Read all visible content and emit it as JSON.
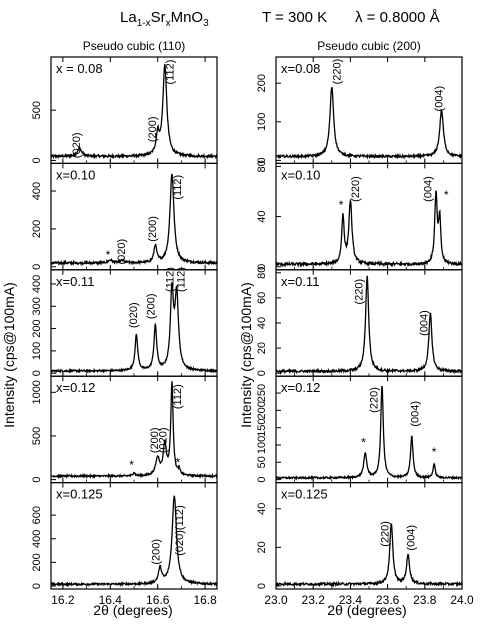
{
  "figure": {
    "title_main": "La",
    "title_sub1": "1-x",
    "title_mid": "Sr",
    "title_sub2": "x",
    "title_tail": "MnO",
    "title_sub3": "3",
    "temperature": "T = 300 K",
    "wavelength": "λ = 0.8000 Å",
    "ylabel": "Intensity (cps@100mA)",
    "xlabel": "2θ (degrees)"
  },
  "chart_data": [
    {
      "type": "line",
      "column_title": "Pseudo cubic (110)",
      "panels": [
        {
          "label": "x = 0.08",
          "ylim": [
            0,
            1000
          ],
          "yticks": [
            0,
            500
          ],
          "base": 40,
          "noise": 12,
          "peaks": [
            [
              16.27,
              80,
              0.011
            ],
            [
              16.6,
              200,
              0.008
            ],
            [
              16.63,
              900,
              0.01
            ]
          ],
          "annotations": [
            {
              "text": "(020)",
              "x": 16.26,
              "y": 150
            },
            {
              "text": "(200)",
              "x": 16.58,
              "y": 310
            },
            {
              "text": "(112)",
              "x": 16.655,
              "y": 880
            }
          ]
        },
        {
          "label": "x=0.10",
          "ylim": [
            0,
            530
          ],
          "yticks": [
            0,
            200,
            400
          ],
          "base": 20,
          "noise": 6,
          "peaks": [
            [
              16.4,
              15,
              0.01
            ],
            [
              16.45,
              12,
              0.012
            ],
            [
              16.59,
              90,
              0.007
            ],
            [
              16.66,
              470,
              0.01
            ]
          ],
          "annotations": [
            {
              "text": "*",
              "x": 16.39,
              "y": 40
            },
            {
              "text": "(020)",
              "x": 16.45,
              "y": 80
            },
            {
              "text": "(200)",
              "x": 16.58,
              "y": 200
            },
            {
              "text": "(112)",
              "x": 16.685,
              "y": 420
            }
          ]
        },
        {
          "label": "x=0.11",
          "ylim": [
            0,
            450
          ],
          "yticks": [
            0,
            100,
            200,
            300,
            400
          ],
          "base": 10,
          "noise": 4,
          "peaks": [
            [
              16.51,
              160,
              0.007
            ],
            [
              16.59,
              200,
              0.007
            ],
            [
              16.66,
              340,
              0.008
            ],
            [
              16.68,
              330,
              0.009
            ]
          ],
          "annotations": [
            {
              "text": "(020)",
              "x": 16.5,
              "y": 260
            },
            {
              "text": "(200)",
              "x": 16.575,
              "y": 300
            },
            {
              "text": "(112)",
              "x": 16.655,
              "y": 420
            },
            {
              "text": "(112)",
              "x": 16.7,
              "y": 420
            }
          ]
        },
        {
          "label": "x=0.12",
          "ylim": [
            0,
            1150
          ],
          "yticks": [
            0,
            500,
            1000
          ],
          "base": 40,
          "noise": 10,
          "peaks": [
            [
              16.5,
              40,
              0.005
            ],
            [
              16.6,
              200,
              0.01
            ],
            [
              16.63,
              350,
              0.008
            ],
            [
              16.66,
              1050,
              0.006
            ],
            [
              16.69,
              60,
              0.005
            ]
          ],
          "annotations": [
            {
              "text": "*",
              "x": 16.49,
              "y": 120
            },
            {
              "text": "(200)",
              "x": 16.59,
              "y": 450
            },
            {
              "text": "(020)",
              "x": 16.625,
              "y": 450
            },
            {
              "text": "(112)",
              "x": 16.685,
              "y": 950
            },
            {
              "text": "*",
              "x": 16.685,
              "y": 150
            }
          ]
        },
        {
          "label": "x=0.125",
          "ylim": [
            0,
            850
          ],
          "yticks": [
            0,
            200,
            400,
            600
          ],
          "base": 15,
          "noise": 8,
          "peaks": [
            [
              16.61,
              130,
              0.008
            ],
            [
              16.67,
              750,
              0.011
            ]
          ],
          "annotations": [
            {
              "text": "(200)",
              "x": 16.595,
              "y": 290
            },
            {
              "text": "(020)(112)",
              "x": 16.695,
              "y": 470
            }
          ]
        }
      ],
      "x_ticks": [
        "16.2",
        "16.4",
        "16.6",
        "16.8"
      ],
      "xlim": [
        16.15,
        16.85
      ]
    },
    {
      "type": "line",
      "column_title": "Pseudo cubic (200)",
      "panels": [
        {
          "label": "x=0.08",
          "ylim": [
            0,
            260
          ],
          "yticks": [
            0,
            100,
            200
          ],
          "base": 10,
          "noise": 3,
          "peaks": [
            [
              23.3,
              180,
              0.012
            ],
            [
              23.89,
              120,
              0.012
            ]
          ],
          "annotations": [
            {
              "text": "(220)",
              "x": 23.33,
              "y": 230
            },
            {
              "text": "(004)",
              "x": 23.88,
              "y": 160
            }
          ]
        },
        {
          "label": "x=0.10",
          "ylim": [
            0,
            80
          ],
          "yticks": [
            0,
            40,
            80
          ],
          "base": 2,
          "noise": 1.2,
          "peaks": [
            [
              23.36,
              38,
              0.008
            ],
            [
              23.4,
              50,
              0.01
            ],
            [
              23.86,
              55,
              0.008
            ],
            [
              23.88,
              35,
              0.007
            ]
          ],
          "annotations": [
            {
              "text": "*",
              "x": 23.35,
              "y": 46
            },
            {
              "text": "(220)",
              "x": 23.43,
              "y": 62
            },
            {
              "text": "(004)",
              "x": 23.82,
              "y": 62
            },
            {
              "text": "*",
              "x": 23.915,
              "y": 54
            }
          ]
        },
        {
          "label": "x=0.11",
          "ylim": [
            0,
            80
          ],
          "yticks": [
            0,
            20,
            40,
            60,
            80
          ],
          "base": 1.5,
          "noise": 1,
          "peaks": [
            [
              23.49,
              76,
              0.01
            ],
            [
              23.83,
              46,
              0.01
            ]
          ],
          "annotations": [
            {
              "text": "(220)",
              "x": 23.45,
              "y": 65
            },
            {
              "text": "(004)",
              "x": 23.8,
              "y": 40
            }
          ]
        },
        {
          "label": "x=0.12",
          "ylim": [
            0,
            290
          ],
          "yticks": [
            0,
            50,
            100,
            150,
            200,
            250
          ],
          "base": 5,
          "noise": 2.5,
          "peaks": [
            [
              23.48,
              70,
              0.01
            ],
            [
              23.57,
              270,
              0.008
            ],
            [
              23.73,
              120,
              0.008
            ],
            [
              23.85,
              40,
              0.007
            ]
          ],
          "annotations": [
            {
              "text": "*",
              "x": 23.47,
              "y": 95
            },
            {
              "text": "(220)",
              "x": 23.53,
              "y": 230
            },
            {
              "text": "(004)",
              "x": 23.75,
              "y": 190
            },
            {
              "text": "*",
              "x": 23.85,
              "y": 68
            }
          ]
        },
        {
          "label": "x=0.125",
          "ylim": [
            0,
            52
          ],
          "yticks": [
            0,
            20,
            40
          ],
          "base": 1,
          "noise": 0.6,
          "peaks": [
            [
              23.62,
              31,
              0.01
            ],
            [
              23.71,
              15,
              0.01
            ]
          ],
          "annotations": [
            {
              "text": "(220)",
              "x": 23.59,
              "y": 27
            },
            {
              "text": "(004)",
              "x": 23.73,
              "y": 25
            }
          ]
        }
      ],
      "x_ticks": [
        "23.0",
        "23.2",
        "23.4",
        "23.6",
        "23.8",
        "24.0"
      ],
      "xlim": [
        23.0,
        24.0
      ]
    }
  ]
}
